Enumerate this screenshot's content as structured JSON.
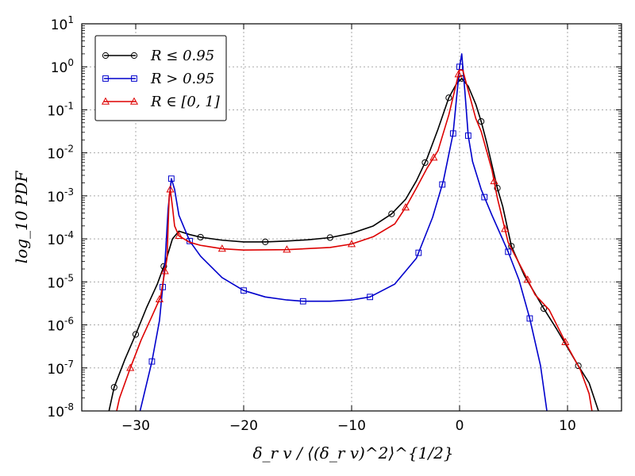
{
  "chart_data": {
    "type": "line",
    "title": "",
    "xlabel": "δ_r v / ⟨(δ_r v)^2⟩^{1/2}",
    "ylabel": "log_10 PDF",
    "xlim": [
      -35,
      15
    ],
    "ylim_log10": [
      -8,
      1
    ],
    "y_scale": "log",
    "grid": true,
    "legend_position": "top-left",
    "x_ticks": [
      -30,
      -20,
      -10,
      0,
      10
    ],
    "x_tick_labels": [
      "−30",
      "−20",
      "−10",
      "0",
      "10"
    ],
    "y_ticks_log10": [
      1,
      0,
      -1,
      -2,
      -3,
      -4,
      -5,
      -6,
      -7,
      -8
    ],
    "y_tick_base": "10",
    "y_tick_exponents": [
      "1",
      "0",
      "-1",
      "-2",
      "-3",
      "-4",
      "-5",
      "-6",
      "-7",
      "-8"
    ],
    "series": [
      {
        "name": "R ≤ 0.95",
        "color": "#000000",
        "marker": "circle",
        "points_log10": [
          [
            -33,
            -8.6
          ],
          [
            -32,
            -7.45
          ],
          [
            -31,
            -6.8
          ],
          [
            -30,
            -6.22
          ],
          [
            -29,
            -5.6
          ],
          [
            -28,
            -5.05
          ],
          [
            -27.2,
            -4.5
          ],
          [
            -26.6,
            -4.0
          ],
          [
            -26,
            -3.82
          ],
          [
            -25,
            -3.9
          ],
          [
            -24,
            -3.96
          ],
          [
            -22,
            -4.03
          ],
          [
            -20,
            -4.07
          ],
          [
            -18,
            -4.07
          ],
          [
            -16,
            -4.05
          ],
          [
            -14,
            -4.02
          ],
          [
            -12,
            -3.97
          ],
          [
            -10,
            -3.87
          ],
          [
            -8,
            -3.7
          ],
          [
            -6.3,
            -3.42
          ],
          [
            -5,
            -3.08
          ],
          [
            -4,
            -2.65
          ],
          [
            -3,
            -2.12
          ],
          [
            -2,
            -1.45
          ],
          [
            -1,
            -0.72
          ],
          [
            -0.3,
            -0.4
          ],
          [
            0.2,
            -0.27
          ],
          [
            0.8,
            -0.45
          ],
          [
            1.5,
            -0.87
          ],
          [
            2,
            -1.27
          ],
          [
            2.5,
            -1.75
          ],
          [
            3.5,
            -2.82
          ],
          [
            4,
            -3.25
          ],
          [
            4.8,
            -4.17
          ],
          [
            6,
            -4.85
          ],
          [
            7.8,
            -5.62
          ],
          [
            9,
            -6.1
          ],
          [
            11,
            -6.95
          ],
          [
            12,
            -7.35
          ],
          [
            13,
            -8.1
          ],
          [
            13.3,
            -8.6
          ]
        ],
        "marker_x": [
          -32,
          -30,
          -27.4,
          -24,
          -18,
          -12,
          -6.3,
          -3.2,
          -1,
          0.2,
          2,
          3.5,
          4.8,
          7.8,
          11
        ]
      },
      {
        "name": "R > 0.95",
        "color": "#0000cc",
        "marker": "square",
        "points_log10": [
          [
            -30.2,
            -8.6
          ],
          [
            -29.5,
            -7.9
          ],
          [
            -28.5,
            -6.85
          ],
          [
            -27.8,
            -5.9
          ],
          [
            -27.3,
            -4.6
          ],
          [
            -27,
            -3.3
          ],
          [
            -26.7,
            -2.6
          ],
          [
            -26.4,
            -2.85
          ],
          [
            -26,
            -3.45
          ],
          [
            -25,
            -4.05
          ],
          [
            -24,
            -4.4
          ],
          [
            -22,
            -4.9
          ],
          [
            -20,
            -5.2
          ],
          [
            -18,
            -5.35
          ],
          [
            -16,
            -5.42
          ],
          [
            -14.5,
            -5.45
          ],
          [
            -12,
            -5.45
          ],
          [
            -10,
            -5.42
          ],
          [
            -8.3,
            -5.35
          ],
          [
            -6,
            -5.05
          ],
          [
            -4,
            -4.45
          ],
          [
            -2.5,
            -3.5
          ],
          [
            -1.5,
            -2.65
          ],
          [
            -0.6,
            -1.55
          ],
          [
            0,
            0.0
          ],
          [
            0.2,
            0.3
          ],
          [
            0.5,
            -0.6
          ],
          [
            0.8,
            -1.6
          ],
          [
            1.2,
            -2.2
          ],
          [
            2,
            -2.85
          ],
          [
            3,
            -3.45
          ],
          [
            4.5,
            -4.3
          ],
          [
            5.5,
            -4.95
          ],
          [
            6.5,
            -5.85
          ],
          [
            7.5,
            -6.95
          ],
          [
            8.2,
            -8.2
          ],
          [
            8.4,
            -8.6
          ]
        ],
        "marker_x": [
          -28.5,
          -27.5,
          -26.7,
          -25,
          -20,
          -14.5,
          -8.3,
          -3.8,
          -1.6,
          -0.6,
          0,
          0.8,
          2.3,
          4.5,
          6.5
        ]
      },
      {
        "name": "R ∈ [0, 1]",
        "color": "#dd0000",
        "marker": "triangle",
        "points_log10": [
          [
            -32.3,
            -8.6
          ],
          [
            -31.5,
            -7.7
          ],
          [
            -30.5,
            -7.0
          ],
          [
            -29.5,
            -6.35
          ],
          [
            -28.5,
            -5.8
          ],
          [
            -27.7,
            -5.35
          ],
          [
            -27.1,
            -4.45
          ],
          [
            -26.9,
            -3.0
          ],
          [
            -26.8,
            -2.85
          ],
          [
            -26.6,
            -3.25
          ],
          [
            -26.4,
            -3.7
          ],
          [
            -26,
            -3.93
          ],
          [
            -25,
            -4.08
          ],
          [
            -24,
            -4.15
          ],
          [
            -22,
            -4.23
          ],
          [
            -20,
            -4.26
          ],
          [
            -16,
            -4.25
          ],
          [
            -12,
            -4.2
          ],
          [
            -10,
            -4.12
          ],
          [
            -8,
            -3.95
          ],
          [
            -6,
            -3.65
          ],
          [
            -5,
            -3.27
          ],
          [
            -4,
            -2.82
          ],
          [
            -3,
            -2.35
          ],
          [
            -2,
            -1.95
          ],
          [
            -1,
            -1.12
          ],
          [
            0,
            -0.07
          ],
          [
            0.3,
            -0.08
          ],
          [
            0.8,
            -0.55
          ],
          [
            1.5,
            -1.2
          ],
          [
            2,
            -1.5
          ],
          [
            3,
            -2.4
          ],
          [
            3.5,
            -3.05
          ],
          [
            4.5,
            -4.08
          ],
          [
            6,
            -4.8
          ],
          [
            7,
            -5.3
          ],
          [
            8.3,
            -5.65
          ],
          [
            10,
            -6.5
          ],
          [
            11.2,
            -7.05
          ],
          [
            12,
            -7.6
          ],
          [
            12.4,
            -8.2
          ],
          [
            12.6,
            -8.6
          ]
        ],
        "marker_x": [
          -30.5,
          -27.8,
          -27.3,
          -26.8,
          -26,
          -22,
          -16,
          -10,
          -5,
          -2.4,
          -0.1,
          3.2,
          4.2,
          6.3,
          9.8
        ]
      }
    ]
  }
}
